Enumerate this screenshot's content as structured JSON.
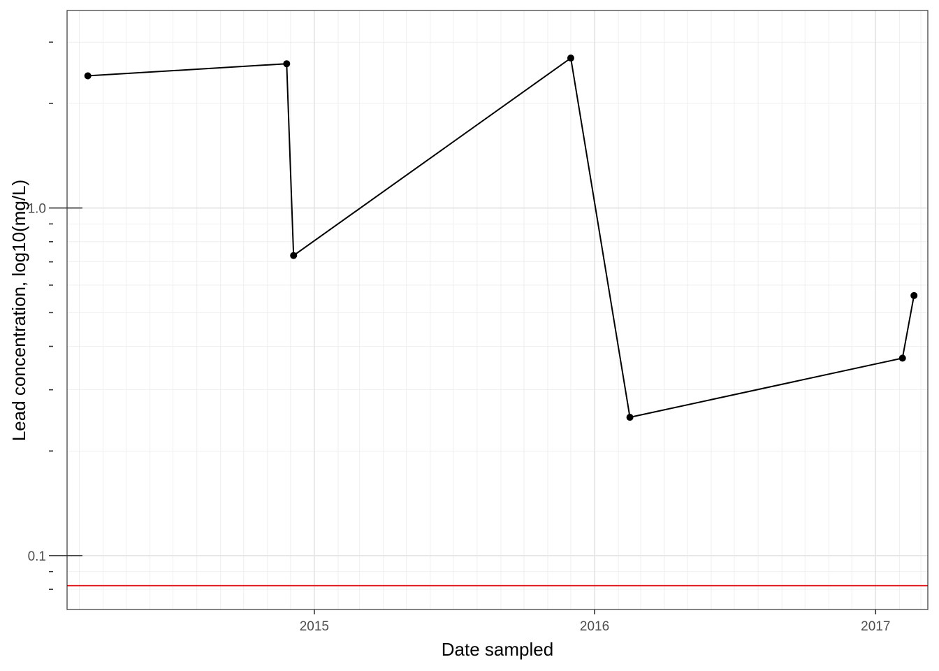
{
  "chart_data": {
    "type": "line",
    "xlabel": "Date sampled",
    "ylabel": "Lead concentration, log10(mg/L)",
    "x_scale": "date",
    "y_scale": "log10",
    "xlim": [
      "2014-02-13",
      "2017-03-10"
    ],
    "ylim": [
      0.07,
      3.7
    ],
    "x_ticks": [
      {
        "date": "2015-01-01",
        "label": "2015"
      },
      {
        "date": "2016-01-01",
        "label": "2016"
      },
      {
        "date": "2017-01-01",
        "label": "2017"
      }
    ],
    "y_ticks": [
      {
        "value": 0.1,
        "label": "0.1"
      },
      {
        "value": 1.0,
        "label": "1.0"
      }
    ],
    "grid": true,
    "series": [
      {
        "points": [
          {
            "date": "2014-03-12",
            "value": 2.4
          },
          {
            "date": "2014-11-26",
            "value": 2.6
          },
          {
            "date": "2014-12-05",
            "value": 0.73
          },
          {
            "date": "2015-12-01",
            "value": 2.7
          },
          {
            "date": "2016-02-16",
            "value": 0.25
          },
          {
            "date": "2017-02-05",
            "value": 0.37
          },
          {
            "date": "2017-02-20",
            "value": 0.56
          }
        ],
        "color": "#000000"
      }
    ],
    "reference_lines": [
      {
        "axis": "y",
        "value": 0.082,
        "color": "#e31a1c"
      }
    ]
  }
}
